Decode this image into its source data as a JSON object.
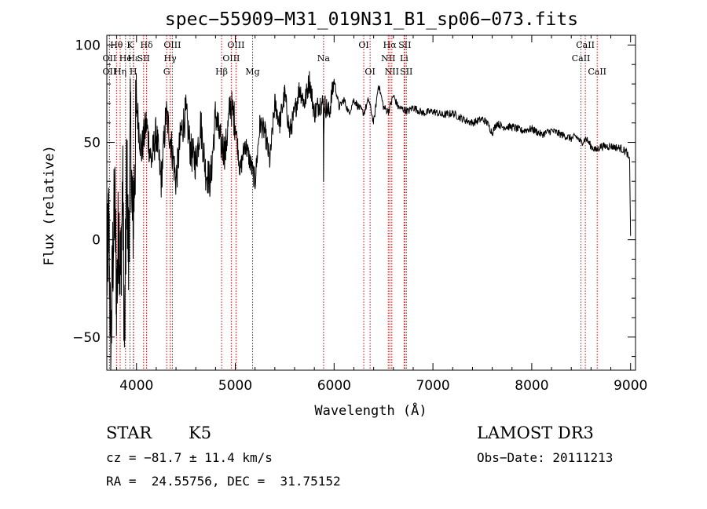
{
  "chart_data": {
    "type": "line",
    "title": "spec−55909−M31_019N31_B1_sp06−073.fits",
    "xlabel": "Wavelength (Å)",
    "ylabel": "Flux (relative)",
    "xlim": [
      3700,
      9050
    ],
    "ylim": [
      -67,
      105
    ],
    "x_ticks": [
      4000,
      5000,
      6000,
      7000,
      8000,
      9000
    ],
    "y_ticks": [
      -50,
      0,
      50,
      100
    ],
    "grid": false,
    "series": [
      {
        "name": "flux",
        "x": [
          3700,
          3720,
          3740,
          3760,
          3780,
          3800,
          3820,
          3840,
          3860,
          3880,
          3900,
          3920,
          3940,
          3960,
          3980,
          4000,
          4050,
          4100,
          4150,
          4200,
          4250,
          4300,
          4350,
          4400,
          4450,
          4500,
          4550,
          4600,
          4650,
          4700,
          4750,
          4800,
          4850,
          4900,
          4950,
          5000,
          5050,
          5100,
          5150,
          5200,
          5250,
          5300,
          5350,
          5400,
          5450,
          5500,
          5550,
          5600,
          5650,
          5700,
          5750,
          5800,
          5850,
          5890,
          5893,
          5900,
          5950,
          6000,
          6050,
          6100,
          6150,
          6200,
          6250,
          6300,
          6350,
          6400,
          6450,
          6500,
          6550,
          6600,
          6650,
          6700,
          6750,
          6800,
          6900,
          7000,
          7100,
          7200,
          7300,
          7400,
          7500,
          7550,
          7600,
          7650,
          7700,
          7800,
          7900,
          8000,
          8100,
          8200,
          8300,
          8400,
          8450,
          8500,
          8550,
          8600,
          8650,
          8700,
          8800,
          8900,
          8960,
          8990,
          9000
        ],
        "y": [
          -20,
          10,
          -60,
          -10,
          20,
          -30,
          10,
          -20,
          30,
          -58,
          40,
          -10,
          60,
          5,
          30,
          70,
          45,
          60,
          40,
          55,
          30,
          65,
          50,
          30,
          55,
          65,
          45,
          40,
          60,
          35,
          30,
          65,
          50,
          45,
          70,
          60,
          35,
          50,
          40,
          30,
          60,
          55,
          40,
          70,
          60,
          75,
          55,
          65,
          78,
          70,
          82,
          65,
          70,
          70,
          35,
          70,
          65,
          82,
          68,
          72,
          65,
          72,
          68,
          65,
          72,
          60,
          80,
          68,
          66,
          74,
          68,
          67,
          66,
          68,
          65,
          66,
          64,
          65,
          62,
          60,
          62,
          60,
          55,
          60,
          58,
          58,
          56,
          57,
          54,
          56,
          54,
          52,
          53,
          50,
          52,
          48,
          46,
          48,
          48,
          47,
          45,
          40,
          2
        ]
      }
    ],
    "lines": [
      {
        "label": "Hθ",
        "wl": 3798,
        "row": 1
      },
      {
        "label": "OII",
        "wl": 3727,
        "row": 2
      },
      {
        "label": "OII",
        "wl": 3727,
        "row": 3
      },
      {
        "label": "K",
        "wl": 3934,
        "row": 1
      },
      {
        "label": "He",
        "wl": 3889,
        "row": 2
      },
      {
        "label": "Hη",
        "wl": 3835,
        "row": 3
      },
      {
        "label": "Hε",
        "wl": 3970,
        "row": 2
      },
      {
        "label": "H",
        "wl": 3968,
        "row": 3
      },
      {
        "label": "Hδ",
        "wl": 4102,
        "row": 1
      },
      {
        "label": "SII",
        "wl": 4072,
        "row": 2
      },
      {
        "label": "OIII",
        "wl": 4363,
        "row": 1
      },
      {
        "label": "Hγ",
        "wl": 4341,
        "row": 2
      },
      {
        "label": "G",
        "wl": 4305,
        "row": 3
      },
      {
        "label": "OIII",
        "wl": 5007,
        "row": 1
      },
      {
        "label": "OIII",
        "wl": 4959,
        "row": 2
      },
      {
        "label": "Hβ",
        "wl": 4861,
        "row": 3
      },
      {
        "label": "Mg",
        "wl": 5175,
        "row": 3
      },
      {
        "label": "Na",
        "wl": 5893,
        "row": 2
      },
      {
        "label": "OI",
        "wl": 6300,
        "row": 1
      },
      {
        "label": "OI",
        "wl": 6364,
        "row": 3
      },
      {
        "label": "Hα",
        "wl": 6563,
        "row": 1
      },
      {
        "label": "NII",
        "wl": 6548,
        "row": 2
      },
      {
        "label": "NII",
        "wl": 6584,
        "row": 3
      },
      {
        "label": "SII",
        "wl": 6716,
        "row": 1
      },
      {
        "label": "Li",
        "wl": 6708,
        "row": 2
      },
      {
        "label": "SII",
        "wl": 6731,
        "row": 3
      },
      {
        "label": "CaII",
        "wl": 8542,
        "row": 1
      },
      {
        "label": "CaII",
        "wl": 8498,
        "row": 2
      },
      {
        "label": "CaII",
        "wl": 8662,
        "row": 3
      }
    ]
  },
  "info": {
    "class": "STAR",
    "subclass": "K5",
    "survey": "LAMOST DR3",
    "cz": "cz = −81.7 ± 11.4 km/s",
    "obs_date": "Obs−Date: 20111213",
    "coords": "RA =  24.55756, DEC =  31.75152"
  }
}
